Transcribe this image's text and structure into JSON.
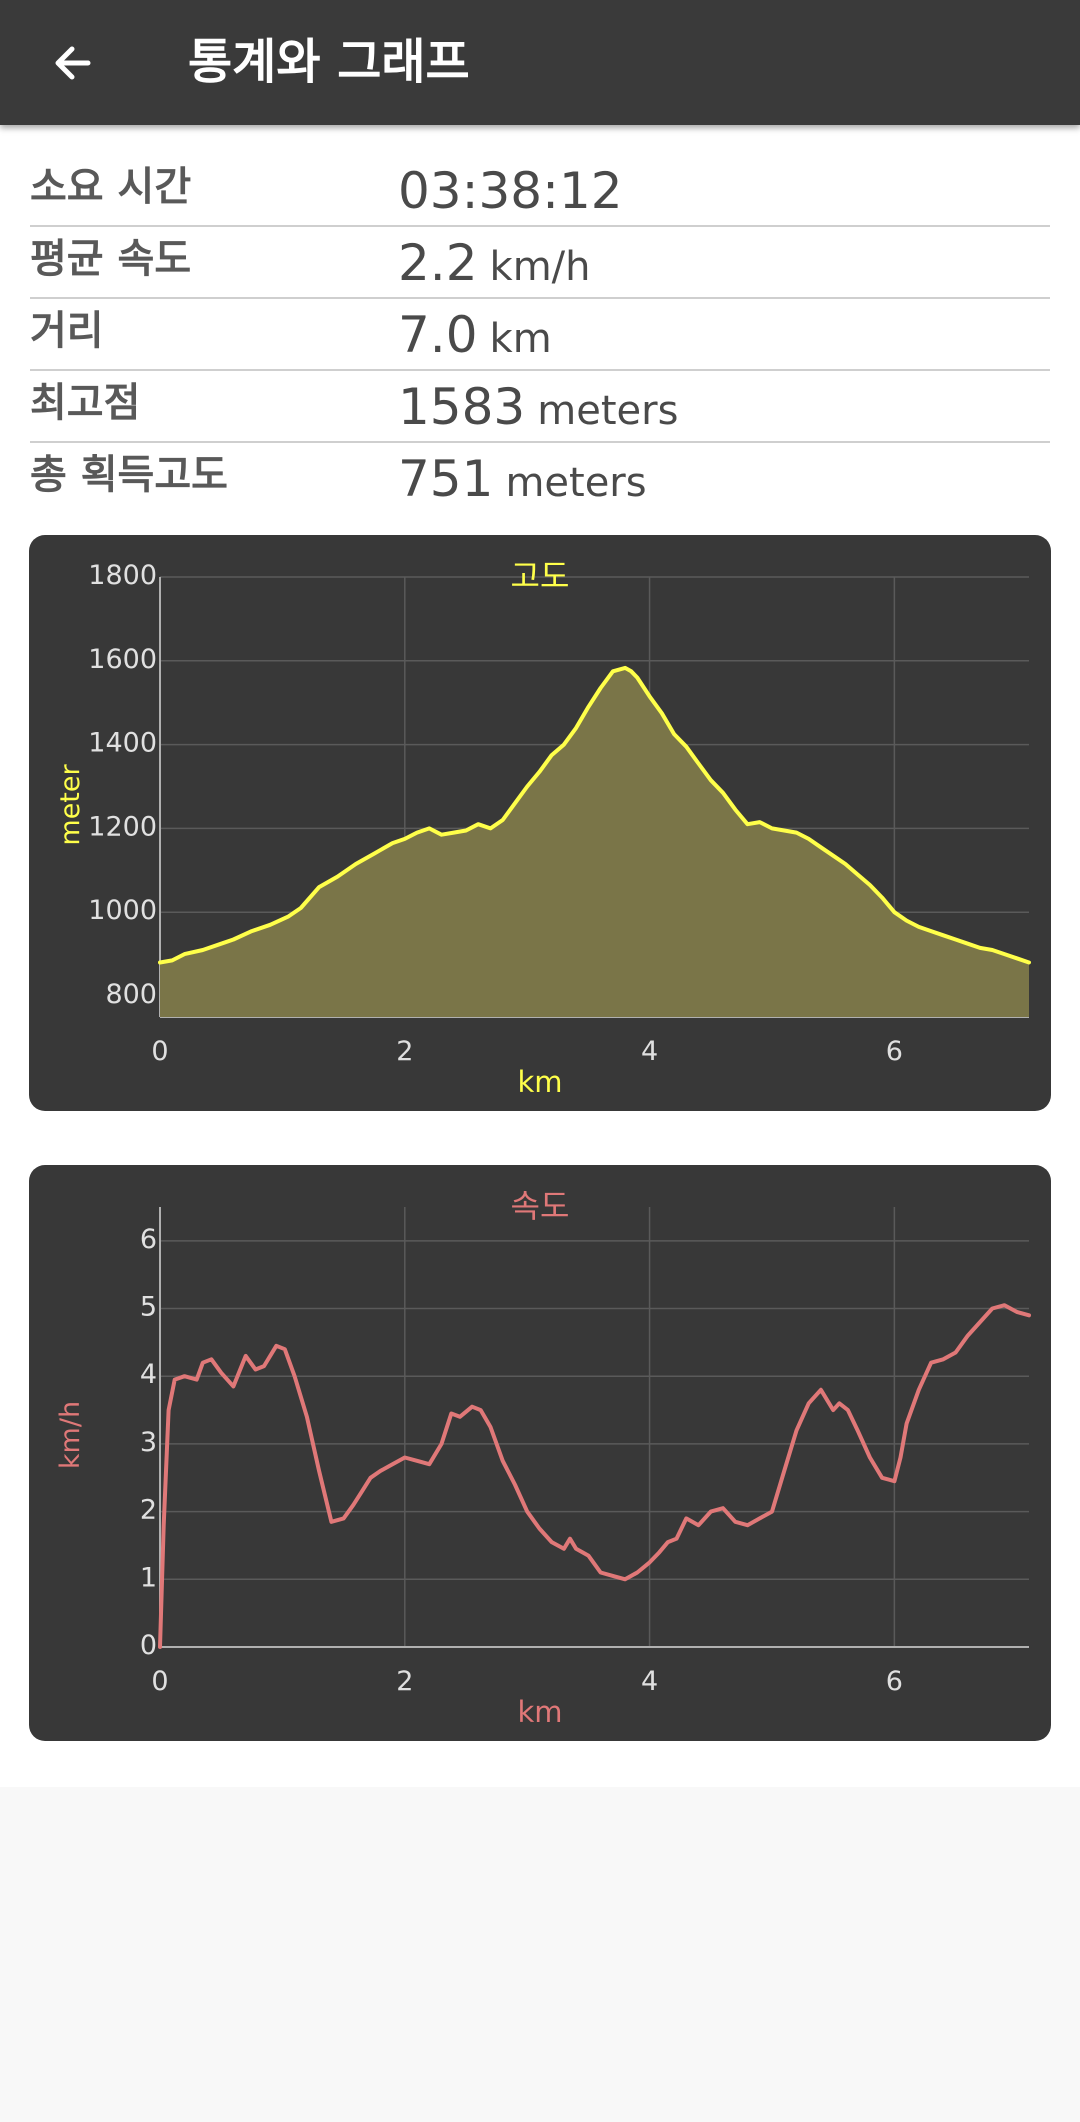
{
  "appbar": {
    "title": "통계와 그래프",
    "back_icon": "arrow-left-icon"
  },
  "stats": [
    {
      "label": "소요 시간",
      "value": "03:38:12",
      "unit": ""
    },
    {
      "label": "평균 속도",
      "value": "2.2",
      "unit": "km/h"
    },
    {
      "label": "거리",
      "value": "7.0",
      "unit": "km"
    },
    {
      "label": "최고점",
      "value": "1583",
      "unit": "meters"
    },
    {
      "label": "총 획득고도",
      "value": "751",
      "unit": "meters"
    }
  ],
  "colors": {
    "appbar": "#3a3a3a",
    "card": "#383838",
    "elevation_line": "#ffff4a",
    "elevation_fill": "#7a7548",
    "speed_line": "#e07878"
  },
  "chart_data": [
    {
      "type": "area",
      "title": "고도",
      "xlabel": "km",
      "ylabel": "meter",
      "xlim": [
        0,
        7.1
      ],
      "ylim": [
        750,
        1800
      ],
      "xticks": [
        "0",
        "2",
        "4",
        "6"
      ],
      "yticks": [
        "800",
        "1000",
        "1200",
        "1400",
        "1600",
        "1800"
      ],
      "grid": true,
      "x": [
        0,
        0.1,
        0.2,
        0.35,
        0.5,
        0.6,
        0.75,
        0.9,
        1.05,
        1.15,
        1.3,
        1.45,
        1.6,
        1.75,
        1.9,
        2.0,
        2.1,
        2.2,
        2.3,
        2.4,
        2.5,
        2.6,
        2.7,
        2.8,
        2.9,
        3.0,
        3.1,
        3.2,
        3.3,
        3.4,
        3.5,
        3.6,
        3.7,
        3.8,
        3.85,
        3.9,
        4.0,
        4.1,
        4.2,
        4.3,
        4.4,
        4.5,
        4.6,
        4.7,
        4.8,
        4.9,
        5.0,
        5.1,
        5.2,
        5.3,
        5.4,
        5.5,
        5.6,
        5.7,
        5.8,
        5.9,
        6.0,
        6.1,
        6.2,
        6.3,
        6.4,
        6.5,
        6.6,
        6.7,
        6.8,
        6.9,
        7.0,
        7.1
      ],
      "y": [
        880,
        885,
        900,
        910,
        925,
        935,
        955,
        970,
        990,
        1010,
        1060,
        1085,
        1115,
        1140,
        1165,
        1175,
        1190,
        1200,
        1185,
        1190,
        1195,
        1210,
        1200,
        1220,
        1260,
        1300,
        1335,
        1375,
        1400,
        1440,
        1490,
        1535,
        1575,
        1583,
        1575,
        1560,
        1515,
        1475,
        1425,
        1395,
        1355,
        1315,
        1285,
        1245,
        1210,
        1215,
        1200,
        1195,
        1190,
        1175,
        1155,
        1135,
        1115,
        1090,
        1065,
        1035,
        1000,
        980,
        965,
        955,
        945,
        935,
        925,
        915,
        910,
        900,
        890,
        880
      ]
    },
    {
      "type": "line",
      "title": "속도",
      "xlabel": "km",
      "ylabel": "km/h",
      "xlim": [
        0,
        7.1
      ],
      "ylim": [
        0,
        6.5
      ],
      "xticks": [
        "0",
        "2",
        "4",
        "6"
      ],
      "yticks": [
        "0",
        "1",
        "2",
        "3",
        "4",
        "5",
        "6"
      ],
      "grid": true,
      "x": [
        0,
        0.03,
        0.07,
        0.12,
        0.2,
        0.3,
        0.35,
        0.42,
        0.5,
        0.6,
        0.7,
        0.78,
        0.85,
        0.95,
        1.02,
        1.1,
        1.2,
        1.3,
        1.4,
        1.5,
        1.58,
        1.65,
        1.72,
        1.8,
        1.9,
        2.0,
        2.1,
        2.2,
        2.3,
        2.38,
        2.45,
        2.55,
        2.62,
        2.7,
        2.8,
        2.9,
        3.0,
        3.1,
        3.2,
        3.3,
        3.35,
        3.4,
        3.5,
        3.6,
        3.7,
        3.8,
        3.9,
        4.0,
        4.08,
        4.15,
        4.22,
        4.3,
        4.4,
        4.5,
        4.6,
        4.7,
        4.8,
        4.9,
        5.0,
        5.1,
        5.2,
        5.3,
        5.4,
        5.5,
        5.55,
        5.62,
        5.7,
        5.8,
        5.9,
        6.0,
        6.05,
        6.1,
        6.2,
        6.3,
        6.4,
        6.5,
        6.6,
        6.7,
        6.8,
        6.9,
        7.0,
        7.1
      ],
      "y": [
        0,
        1.8,
        3.5,
        3.95,
        4.0,
        3.95,
        4.2,
        4.25,
        4.05,
        3.85,
        4.3,
        4.1,
        4.15,
        4.45,
        4.4,
        4.0,
        3.4,
        2.6,
        1.85,
        1.9,
        2.1,
        2.3,
        2.5,
        2.6,
        2.7,
        2.8,
        2.75,
        2.7,
        3.0,
        3.45,
        3.4,
        3.55,
        3.5,
        3.25,
        2.75,
        2.4,
        2.0,
        1.75,
        1.55,
        1.45,
        1.6,
        1.45,
        1.35,
        1.1,
        1.05,
        1.0,
        1.1,
        1.25,
        1.4,
        1.55,
        1.6,
        1.9,
        1.8,
        2.0,
        2.05,
        1.85,
        1.8,
        1.9,
        2.0,
        2.6,
        3.2,
        3.6,
        3.8,
        3.5,
        3.6,
        3.5,
        3.2,
        2.8,
        2.5,
        2.45,
        2.8,
        3.3,
        3.8,
        4.2,
        4.25,
        4.35,
        4.6,
        4.8,
        5.0,
        5.05,
        4.95,
        4.9
      ]
    }
  ]
}
